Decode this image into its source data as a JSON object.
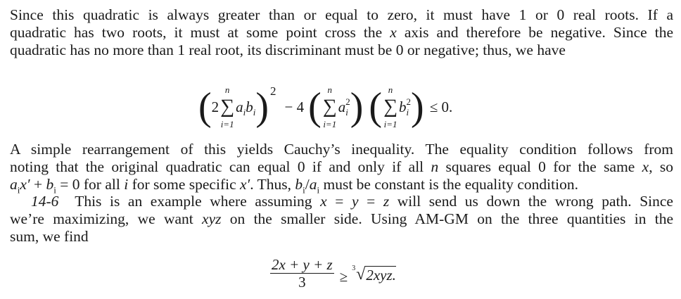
{
  "paragraph1": [
    [
      {
        "t": "Since this quadratic is always greater than or equal to zero, it must have 1 or 0 real roots. If a"
      }
    ],
    [
      {
        "t": "quadratic has two roots, it must at some point cross the "
      },
      {
        "t": "x",
        "i": true
      },
      {
        "t": " axis and therefore be negative. Since the"
      }
    ],
    [
      {
        "t": "quadratic has no more than 1 real root, its discriminant must be 0 or negative; thus, we have"
      }
    ]
  ],
  "equation1": {
    "coef": "2",
    "upper": "n",
    "lower": "i=1",
    "term1": "a",
    "term1_sub": "i",
    "term2": "b",
    "term2_sub": "i",
    "outer_exp": "2",
    "minus_four": "− 4",
    "a_sq": "a",
    "b_sq": "b",
    "sq_sub": "i",
    "sq_sup": "2",
    "rel": "≤ 0."
  },
  "paragraph2": [
    [
      {
        "t": "A simple rearrangement of this yields Cauchy’s inequality. The equality condition follows from"
      }
    ],
    [
      {
        "t": "noting that the original quadratic can equal 0 if and only if all "
      },
      {
        "t": "n",
        "i": true
      },
      {
        "t": " squares equal 0 for the same "
      },
      {
        "t": "x",
        "i": true
      },
      {
        "t": ", so"
      }
    ],
    [
      {
        "t": "a",
        "i": true
      },
      {
        "t": "i",
        "sub": true
      },
      {
        "t": "x′",
        "i": true
      },
      {
        "t": " + "
      },
      {
        "t": "b",
        "i": true
      },
      {
        "t": "i",
        "sub": true
      },
      {
        "t": " = 0 for all "
      },
      {
        "t": "i",
        "i": true
      },
      {
        "t": " for some specific "
      },
      {
        "t": "x′",
        "i": true
      },
      {
        "t": ". Thus, "
      },
      {
        "t": "b",
        "i": true
      },
      {
        "t": "i",
        "sub": true
      },
      {
        "t": "/"
      },
      {
        "t": "a",
        "i": true
      },
      {
        "t": "i",
        "sub": true
      },
      {
        "t": " must be constant is the equality condition."
      }
    ]
  ],
  "paragraph3": [
    [
      {
        "t": "    "
      },
      {
        "t": "14-6",
        "i": true
      },
      {
        "t": "  This is an example where assuming "
      },
      {
        "t": "x",
        "i": true
      },
      {
        "t": " = "
      },
      {
        "t": "y",
        "i": true
      },
      {
        "t": " = "
      },
      {
        "t": "z",
        "i": true
      },
      {
        "t": " will send us down the wrong path. Since"
      }
    ],
    [
      {
        "t": "we’re maximizing, we want "
      },
      {
        "t": "xyz",
        "i": true
      },
      {
        "t": " on the smaller side. Using AM-GM on the three quantities in the"
      }
    ],
    [
      {
        "t": "sum, we find"
      }
    ]
  ],
  "equation2": {
    "numerator": "2x + y + z",
    "denominator": "3",
    "rel": "≥",
    "root_index": "3",
    "radicand": "2xyz."
  }
}
